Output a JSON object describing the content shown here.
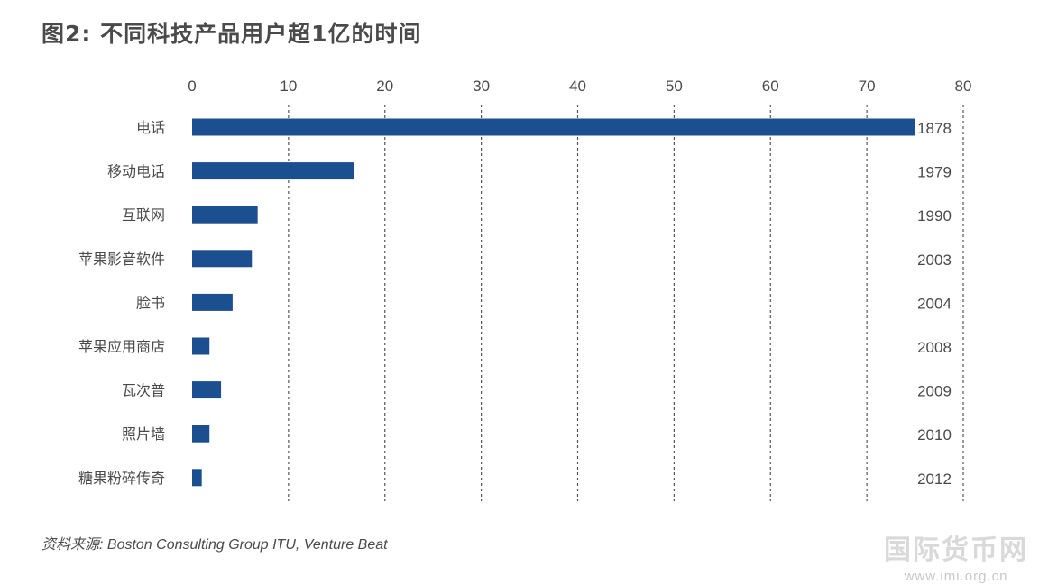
{
  "title": "图2: 不同科技产品用户超1亿的时间",
  "source": "资料来源: Boston Consulting Group ITU, Venture Beat",
  "watermark": {
    "name": "国际货币网",
    "url": "www.imi.org.cn"
  },
  "colors": {
    "bar": "#1b4f8f",
    "grid": "#555555",
    "text": "#4a4a4a"
  },
  "chart_data": {
    "type": "bar",
    "orientation": "horizontal",
    "title": "图2: 不同科技产品用户超1亿的时间",
    "xlabel": "",
    "ylabel": "",
    "xlim": [
      0,
      80
    ],
    "x_ticks": [
      0,
      10,
      20,
      30,
      40,
      50,
      60,
      70,
      80
    ],
    "x_axis_position": "top",
    "grid": "vertical dashed",
    "categories": [
      "电话",
      "移动电话",
      "互联网",
      "苹果影音软件",
      "脸书",
      "苹果应用商店",
      "瓦次普",
      "照片墙",
      "糖果粉碎传奇"
    ],
    "values": [
      75,
      16.8,
      6.8,
      6.2,
      4.2,
      1.8,
      3.0,
      1.8,
      1.0
    ],
    "right_labels": [
      "1878",
      "1979",
      "1990",
      "2003",
      "2004",
      "2008",
      "2009",
      "2010",
      "2012"
    ]
  }
}
